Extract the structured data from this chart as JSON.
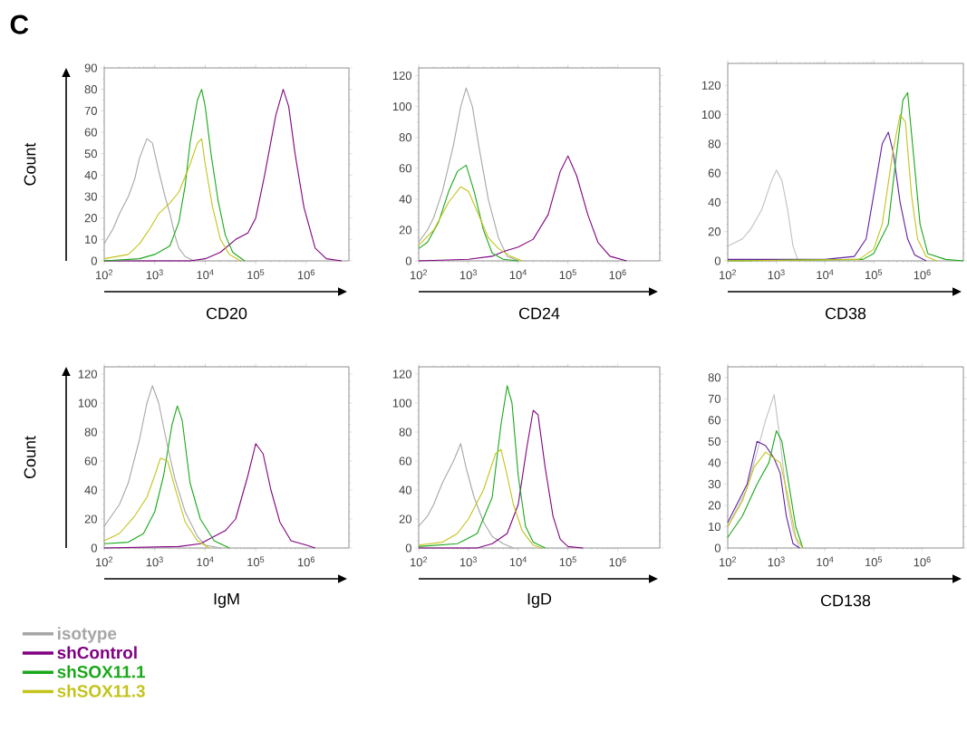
{
  "chart_data": [
    {
      "type": "line",
      "log": "x",
      "xlabel": "CD20",
      "ylabel": "Count",
      "legend": "bottom left",
      "annotations": [
        "C"
      ],
      "xlim": [
        100,
        7000000
      ],
      "xticks": [
        {
          "value": 100,
          "label": "10$^{2}$"
        },
        {
          "value": 1000,
          "label": "10$^{3}$"
        },
        {
          "value": 10000,
          "label": "10$^{4}$"
        },
        {
          "value": 100000,
          "label": "10$^{5}$"
        },
        {
          "value": 1000000,
          "label": "10$^{6}$"
        }
      ],
      "ylim": [
        0,
        90
      ],
      "yticks": [
        0,
        10,
        20,
        30,
        40,
        50,
        60,
        70,
        80,
        90
      ],
      "series": [
        {
          "name": "isotype",
          "color": "#a6a6a6",
          "x": [
            100,
            150,
            200,
            300,
            400,
            500,
            700,
            900,
            1200,
            1600,
            2000,
            2500,
            3000,
            4000,
            6000
          ],
          "values": [
            8,
            15,
            22,
            30,
            38,
            48,
            57,
            55,
            42,
            30,
            22,
            12,
            6,
            2,
            0
          ]
        },
        {
          "name": "shControl",
          "color": "#800080",
          "x": [
            100,
            5000,
            10000,
            20000,
            40000,
            70000,
            100000,
            150000,
            250000,
            350000,
            450000,
            600000,
            900000,
            1500000,
            2500000,
            5000000
          ],
          "values": [
            0,
            0,
            1,
            4,
            10,
            13,
            20,
            40,
            68,
            80,
            72,
            50,
            25,
            6,
            1,
            0
          ]
        },
        {
          "name": "shSOX11.1",
          "color": "#1aa81a",
          "x": [
            100,
            500,
            1000,
            2000,
            3000,
            4000,
            5000,
            7000,
            8500,
            10000,
            13000,
            18000,
            25000,
            35000,
            60000
          ],
          "values": [
            0,
            1,
            3,
            7,
            18,
            35,
            55,
            75,
            80,
            72,
            50,
            28,
            12,
            4,
            0
          ]
        },
        {
          "name": "shSOX11.3",
          "color": "#c3c31a",
          "x": [
            100,
            300,
            500,
            800,
            1200,
            2000,
            3000,
            5000,
            7000,
            8500,
            10000,
            14000,
            20000,
            30000,
            50000
          ],
          "values": [
            1,
            3,
            8,
            15,
            22,
            27,
            32,
            45,
            55,
            57,
            45,
            25,
            10,
            3,
            0
          ]
        }
      ]
    },
    {
      "type": "line",
      "log": "x",
      "xlabel": "CD24",
      "xlim": [
        100,
        7000000
      ],
      "xticks": [
        {
          "value": 100,
          "label": "10$^{2}$"
        },
        {
          "value": 1000,
          "label": "10$^{3}$"
        },
        {
          "value": 10000,
          "label": "10$^{4}$"
        },
        {
          "value": 100000,
          "label": "10$^{5}$"
        },
        {
          "value": 1000000,
          "label": "10$^{6}$"
        }
      ],
      "ylim": [
        0,
        125
      ],
      "yticks": [
        0,
        20,
        40,
        60,
        80,
        100,
        120
      ],
      "series": [
        {
          "color": "#a6a6a6",
          "x": [
            100,
            150,
            200,
            300,
            500,
            700,
            900,
            1200,
            1600,
            2500,
            4000,
            6000,
            10000
          ],
          "values": [
            12,
            20,
            28,
            45,
            75,
            100,
            112,
            100,
            75,
            40,
            15,
            3,
            0
          ]
        },
        {
          "color": "#800080",
          "x": [
            100,
            1000,
            3000,
            5000,
            10000,
            20000,
            40000,
            70000,
            100000,
            150000,
            250000,
            400000,
            700000,
            1500000
          ],
          "values": [
            0,
            1,
            3,
            6,
            9,
            14,
            30,
            58,
            68,
            55,
            30,
            12,
            3,
            0
          ]
        },
        {
          "color": "#1aa81a",
          "x": [
            100,
            150,
            250,
            400,
            600,
            900,
            1300,
            2000,
            3000,
            5000,
            10000
          ],
          "values": [
            8,
            12,
            25,
            45,
            58,
            62,
            45,
            20,
            5,
            1,
            0
          ]
        },
        {
          "color": "#c3c31a",
          "x": [
            100,
            200,
            400,
            700,
            1000,
            1500,
            2500,
            4000,
            7000,
            12000
          ],
          "values": [
            10,
            20,
            38,
            48,
            45,
            32,
            15,
            8,
            3,
            0
          ]
        }
      ]
    },
    {
      "type": "line",
      "log": "x",
      "xlabel": "CD38",
      "xlim": [
        100,
        7000000
      ],
      "xticks": [
        {
          "value": 100,
          "label": "10$^{2}$"
        },
        {
          "value": 1000,
          "label": "10$^{3}$"
        },
        {
          "value": 10000,
          "label": "10$^{4}$"
        },
        {
          "value": 100000,
          "label": "10$^{5}$"
        },
        {
          "value": 1000000,
          "label": "10$^{6}$"
        }
      ],
      "ylim": [
        0,
        135
      ],
      "yticks": [
        0,
        20,
        40,
        60,
        80,
        100,
        120
      ],
      "series": [
        {
          "color": "#c0c0c0",
          "x": [
            100,
            200,
            300,
            500,
            800,
            1000,
            1300,
            1700,
            2200,
            2800
          ],
          "values": [
            10,
            15,
            22,
            35,
            55,
            62,
            55,
            35,
            10,
            0
          ]
        },
        {
          "color": "#6020a0",
          "x": [
            100,
            10000,
            40000,
            70000,
            100000,
            150000,
            200000,
            250000,
            350000,
            500000,
            700000,
            1200000
          ],
          "values": [
            1,
            1,
            3,
            15,
            45,
            80,
            88,
            75,
            40,
            15,
            4,
            0
          ]
        },
        {
          "color": "#1aa81a",
          "x": [
            100,
            60000,
            100000,
            200000,
            300000,
            400000,
            500000,
            650000,
            900000,
            1300000,
            3000000,
            7000000
          ],
          "values": [
            0,
            1,
            5,
            25,
            75,
            110,
            115,
            75,
            25,
            5,
            1,
            0
          ]
        },
        {
          "color": "#c3c31a",
          "x": [
            100,
            50000,
            100000,
            150000,
            250000,
            350000,
            450000,
            600000,
            800000,
            1200000,
            2000000
          ],
          "values": [
            0,
            1,
            8,
            25,
            75,
            100,
            95,
            45,
            15,
            3,
            0
          ]
        }
      ]
    },
    {
      "type": "line",
      "log": "x",
      "xlabel": "IgM",
      "ylabel": "Count",
      "xlim": [
        100,
        7000000
      ],
      "xticks": [
        {
          "value": 100,
          "label": "10$^{2}$"
        },
        {
          "value": 1000,
          "label": "10$^{3}$"
        },
        {
          "value": 10000,
          "label": "10$^{4}$"
        },
        {
          "value": 100000,
          "label": "10$^{5}$"
        },
        {
          "value": 1000000,
          "label": "10$^{6}$"
        }
      ],
      "ylim": [
        0,
        125
      ],
      "yticks": [
        0,
        20,
        40,
        60,
        80,
        100,
        120
      ],
      "series": [
        {
          "color": "#a6a6a6",
          "x": [
            100,
            200,
            300,
            500,
            700,
            900,
            1200,
            1800,
            2500,
            4000,
            7000,
            10000,
            20000
          ],
          "values": [
            15,
            30,
            45,
            75,
            100,
            112,
            100,
            70,
            48,
            25,
            8,
            2,
            0
          ]
        },
        {
          "color": "#800080",
          "x": [
            100,
            3000,
            8000,
            15000,
            25000,
            40000,
            70000,
            100000,
            140000,
            200000,
            300000,
            500000,
            1000000,
            1500000
          ],
          "values": [
            0,
            1,
            3,
            8,
            12,
            20,
            50,
            72,
            65,
            40,
            18,
            5,
            2,
            0
          ]
        },
        {
          "color": "#1aa81a",
          "x": [
            100,
            300,
            600,
            1000,
            1500,
            2200,
            2800,
            3500,
            5000,
            8000,
            15000,
            30000
          ],
          "values": [
            3,
            4,
            10,
            25,
            50,
            85,
            98,
            88,
            45,
            20,
            5,
            0
          ]
        },
        {
          "color": "#c3c31a",
          "x": [
            100,
            200,
            400,
            700,
            1000,
            1300,
            1800,
            2500,
            4000,
            7000,
            12000
          ],
          "values": [
            5,
            10,
            22,
            35,
            50,
            62,
            60,
            42,
            18,
            5,
            0
          ]
        }
      ]
    },
    {
      "type": "line",
      "log": "x",
      "xlabel": "IgD",
      "xlim": [
        100,
        7000000
      ],
      "xticks": [
        {
          "value": 100,
          "label": "10$^{2}$"
        },
        {
          "value": 1000,
          "label": "10$^{3}$"
        },
        {
          "value": 10000,
          "label": "10$^{4}$"
        },
        {
          "value": 100000,
          "label": "10$^{5}$"
        },
        {
          "value": 1000000,
          "label": "10$^{6}$"
        }
      ],
      "ylim": [
        0,
        125
      ],
      "yticks": [
        0,
        20,
        40,
        60,
        80,
        100,
        120
      ],
      "series": [
        {
          "color": "#a6a6a6",
          "x": [
            100,
            150,
            200,
            300,
            500,
            700,
            900,
            1300,
            2000,
            3000,
            5000,
            8000
          ],
          "values": [
            15,
            22,
            30,
            45,
            60,
            72,
            55,
            35,
            18,
            8,
            3,
            0
          ]
        },
        {
          "color": "#800080",
          "x": [
            100,
            1500,
            3000,
            6000,
            10000,
            15000,
            20000,
            25000,
            35000,
            50000,
            70000,
            100000,
            200000
          ],
          "values": [
            0,
            0,
            3,
            10,
            30,
            70,
            95,
            92,
            55,
            22,
            6,
            1,
            0
          ]
        },
        {
          "color": "#1aa81a",
          "x": [
            100,
            600,
            1500,
            3000,
            4500,
            6000,
            7500,
            10000,
            14000,
            20000,
            35000
          ],
          "values": [
            1,
            3,
            10,
            35,
            85,
            112,
            100,
            50,
            15,
            4,
            0
          ]
        },
        {
          "color": "#c3c31a",
          "x": [
            100,
            300,
            600,
            1000,
            2000,
            3500,
            4500,
            6000,
            8000,
            12000,
            20000,
            30000
          ],
          "values": [
            2,
            4,
            10,
            20,
            40,
            65,
            68,
            50,
            30,
            12,
            2,
            0
          ]
        }
      ]
    },
    {
      "type": "line",
      "log": "x",
      "xlabel": "CD138",
      "xlim": [
        100,
        7000000
      ],
      "xticks": [
        {
          "value": 100,
          "label": "10$^{2}$"
        },
        {
          "value": 1000,
          "label": "10$^{3}$"
        },
        {
          "value": 10000,
          "label": "10$^{4}$"
        },
        {
          "value": 100000,
          "label": "10$^{5}$"
        },
        {
          "value": 1000000,
          "label": "10$^{6}$"
        }
      ],
      "ylim": [
        0,
        85
      ],
      "yticks": [
        0,
        10,
        20,
        30,
        40,
        50,
        60,
        70,
        80
      ],
      "series": [
        {
          "color": "#c0c0c0",
          "x": [
            100,
            150,
            250,
            400,
            600,
            900,
            1200,
            1600,
            2200,
            3000
          ],
          "values": [
            10,
            18,
            28,
            45,
            60,
            72,
            50,
            25,
            8,
            0
          ]
        },
        {
          "color": "#6020a0",
          "x": [
            100,
            150,
            250,
            400,
            600,
            900,
            1200,
            1600,
            2200,
            3000
          ],
          "values": [
            12,
            20,
            30,
            50,
            48,
            42,
            35,
            15,
            2,
            0
          ]
        },
        {
          "color": "#1aa81a",
          "x": [
            100,
            200,
            400,
            700,
            1000,
            1300,
            1800,
            2500,
            3500
          ],
          "values": [
            5,
            15,
            30,
            40,
            55,
            50,
            30,
            10,
            0
          ]
        },
        {
          "color": "#c3c31a",
          "x": [
            100,
            200,
            350,
            600,
            900,
            1200,
            1700,
            2500,
            3500
          ],
          "values": [
            10,
            22,
            38,
            45,
            42,
            40,
            25,
            5,
            0
          ]
        }
      ]
    }
  ]
}
